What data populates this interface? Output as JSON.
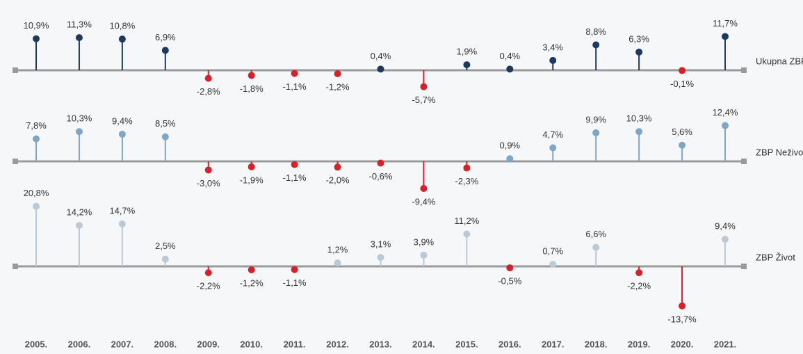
{
  "chart_data": {
    "type": "lollipop",
    "categories": [
      "2005.",
      "2006.",
      "2007.",
      "2008.",
      "2009.",
      "2010.",
      "2011.",
      "2012.",
      "2013.",
      "2014.",
      "2015.",
      "2016.",
      "2017.",
      "2018.",
      "2019.",
      "2020.",
      "2021."
    ],
    "negative_color": "#d7202a",
    "series": [
      {
        "name": "Ukupna ZBP",
        "color": "#1d3a5e",
        "values": [
          10.9,
          11.3,
          10.8,
          6.9,
          -2.8,
          -1.8,
          -1.1,
          -1.2,
          0.4,
          -5.7,
          1.9,
          0.4,
          3.4,
          8.8,
          6.3,
          -0.1,
          11.7
        ],
        "value_labels": [
          "10,9%",
          "11,3%",
          "10,8%",
          "6,9%",
          "-2,8%",
          "-1,8%",
          "-1,1%",
          "-1,2%",
          "0,4%",
          "-5,7%",
          "1,9%",
          "0,4%",
          "3,4%",
          "8,8%",
          "6,3%",
          "-0,1%",
          "11,7%"
        ]
      },
      {
        "name": "ZBP Neživot",
        "color": "#7fa6c6",
        "values": [
          7.8,
          10.3,
          9.4,
          8.5,
          -3.0,
          -1.9,
          -1.1,
          -2.0,
          -0.6,
          -9.4,
          -2.3,
          0.9,
          4.7,
          9.9,
          10.3,
          5.6,
          12.4
        ],
        "value_labels": [
          "7,8%",
          "10,3%",
          "9,4%",
          "8,5%",
          "-3,0%",
          "-1,9%",
          "-1,1%",
          "-2,0%",
          "-0,6%",
          "-9,4%",
          "-2,3%",
          "0,9%",
          "4,7%",
          "9,9%",
          "10,3%",
          "5,6%",
          "12,4%"
        ]
      },
      {
        "name": "ZBP Život",
        "color": "#b9c9d5",
        "values": [
          20.8,
          14.2,
          14.7,
          2.5,
          -2.2,
          -1.2,
          -1.1,
          1.2,
          3.1,
          3.9,
          11.2,
          -0.5,
          0.7,
          6.6,
          -2.2,
          -13.7,
          9.4
        ],
        "value_labels": [
          "20,8%",
          "14,2%",
          "14,7%",
          "2,5%",
          "-2,2%",
          "-1,2%",
          "-1,1%",
          "1,2%",
          "3,1%",
          "3,9%",
          "11,2%",
          "-0,5%",
          "0,7%",
          "6,6%",
          "-2,2%",
          "-13,7%",
          "9,4%"
        ]
      }
    ]
  }
}
